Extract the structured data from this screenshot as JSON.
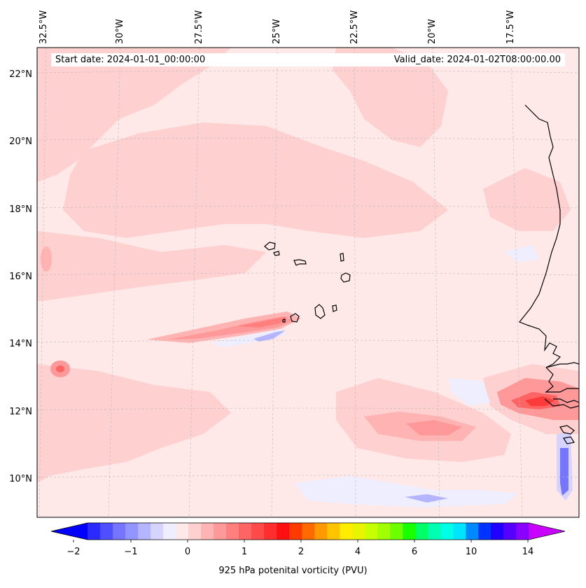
{
  "map": {
    "start_date": "Start date: 2024-01-01_00:00:00",
    "valid_date": "Valid_date: 2024-01-02T08:00:00.00",
    "longitude_labels": [
      "32.5°W",
      "30°W",
      "27.5°W",
      "25°W",
      "22.5°W",
      "20°W",
      "17.5°W"
    ],
    "latitude_labels": [
      "22°N",
      "20°N",
      "18°N",
      "16°N",
      "14°N",
      "12°N",
      "10°N"
    ],
    "field_variable": "925 hPa potential vorticity",
    "coastline_regions": [
      "Cape Verde Islands",
      "West African coast"
    ]
  },
  "colorbar": {
    "label": "925 hPa potenital vorticity (PVU)",
    "tick_labels": [
      "−2",
      "−1",
      "0",
      "1",
      "2",
      "4",
      "6",
      "10",
      "14"
    ],
    "colors": [
      "#0000ff",
      "#2a2aff",
      "#4f4fff",
      "#7575ff",
      "#9494ff",
      "#b4b4ff",
      "#d4d4ff",
      "#eeeeff",
      "#ffe8e8",
      "#ffd0d0",
      "#ffb3b3",
      "#ff9999",
      "#ff7f7f",
      "#ff6464",
      "#ff4a4a",
      "#ff2d2d",
      "#ff1010",
      "#ff3a00",
      "#ff6a00",
      "#ff9900",
      "#ffc400",
      "#ffee00",
      "#e8f500",
      "#c8ff00",
      "#a0ff00",
      "#6cff00",
      "#18ff00",
      "#00ff66",
      "#00ffb3",
      "#00ffe6",
      "#00e5ff",
      "#0088ff",
      "#0033ff",
      "#2200ff",
      "#5500ff",
      "#8800ff",
      "#c800ff"
    ],
    "extend": "both"
  }
}
